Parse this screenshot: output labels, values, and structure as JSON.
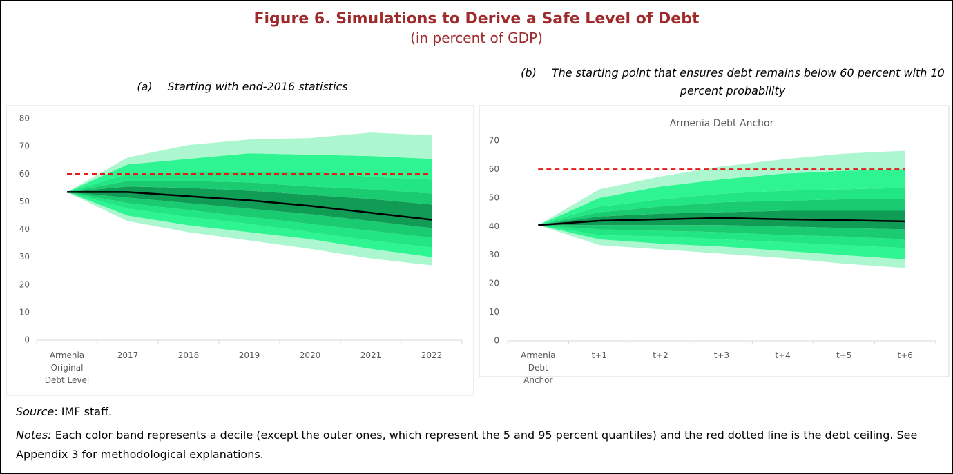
{
  "header": {
    "title": "Figure 6. Simulations to Derive a Safe Level of Debt",
    "subtitle": "(in percent of GDP)"
  },
  "chart_data": [
    {
      "type": "fan",
      "panel_label": "(a)",
      "panel_title": "Starting with end-2016 statistics",
      "categories": [
        "Armenia Original Debt Level",
        "2017",
        "2018",
        "2019",
        "2020",
        "2021",
        "2022"
      ],
      "quantiles": [
        [
          53.5,
          43,
          39,
          36,
          33,
          29.5,
          27
        ],
        [
          53.5,
          45,
          41.5,
          39,
          36.5,
          33,
          30
        ],
        [
          53.5,
          47.5,
          44.5,
          42,
          39,
          36,
          33.5
        ],
        [
          53.5,
          49.5,
          47,
          44.5,
          42,
          39.5,
          37
        ],
        [
          53.5,
          51.5,
          49.5,
          47.5,
          45.5,
          43,
          40.5
        ],
        [
          53.5,
          53.5,
          52,
          50.5,
          48.5,
          46,
          43.5
        ],
        [
          53.5,
          55.5,
          55,
          54,
          52.5,
          51,
          49
        ],
        [
          53.5,
          57.5,
          57.5,
          57,
          55.5,
          54.5,
          53
        ],
        [
          53.5,
          60,
          60.5,
          61,
          61,
          59,
          58
        ],
        [
          53.5,
          63.5,
          65.5,
          67.5,
          67,
          66.5,
          65.5
        ],
        [
          53.5,
          66,
          70.5,
          72.5,
          73,
          75,
          74
        ]
      ],
      "band_colors": [
        "#adf7d0",
        "#2ef591",
        "#22e583",
        "#1acb72",
        "#109c55",
        "#109c55",
        "#1acb72",
        "#22e583",
        "#2ef591",
        "#adf7d0"
      ],
      "median_color": "#000000",
      "reference_line": {
        "value": 60,
        "color": "#e31b1b"
      },
      "ylim": [
        0,
        80
      ],
      "yticks": [
        0,
        10,
        20,
        30,
        40,
        50,
        60,
        70,
        80
      ]
    },
    {
      "type": "fan",
      "panel_label": "(b)",
      "panel_title": "The starting point that ensures debt remains below 60 percent with 10 percent probability",
      "title": "Armenia Debt Anchor",
      "categories": [
        "Armenia Debt Anchor",
        "t+1",
        "t+2",
        "t+3",
        "t+4",
        "t+5",
        "t+6"
      ],
      "quantiles": [
        [
          40.5,
          33.5,
          32,
          30.5,
          29,
          27,
          25.5
        ],
        [
          40.5,
          35.5,
          34,
          33,
          31.5,
          30,
          28.5
        ],
        [
          40.5,
          37,
          36.5,
          35.5,
          34.5,
          33.5,
          32.5
        ],
        [
          40.5,
          39,
          38.5,
          38,
          37,
          36.5,
          35.5
        ],
        [
          40.5,
          40.5,
          40.5,
          40.5,
          40,
          39.5,
          39
        ],
        [
          40.5,
          42,
          42.5,
          43,
          42.5,
          42.2,
          41.8
        ],
        [
          40.5,
          43.5,
          44.5,
          45,
          45.5,
          45.5,
          45.5
        ],
        [
          40.5,
          45,
          47,
          48.5,
          49,
          49.5,
          49.5
        ],
        [
          40.5,
          47,
          49.5,
          51.5,
          52.5,
          53,
          53.5
        ],
        [
          40.5,
          50,
          54,
          56.5,
          58.5,
          59.5,
          60
        ],
        [
          40.5,
          53,
          57.5,
          61,
          63.5,
          65.5,
          66.5
        ]
      ],
      "band_colors": [
        "#adf7d0",
        "#2ef591",
        "#22e583",
        "#1acb72",
        "#109c55",
        "#109c55",
        "#1acb72",
        "#22e583",
        "#2ef591",
        "#adf7d0"
      ],
      "median_color": "#000000",
      "reference_line": {
        "value": 60,
        "color": "#e31b1b"
      },
      "ylim": [
        0,
        70
      ],
      "yticks": [
        0,
        10,
        20,
        30,
        40,
        50,
        60,
        70
      ]
    }
  ],
  "footer": {
    "source_label": "Source",
    "source_text": ": IMF staff.",
    "notes_label": "Notes:",
    "notes_text": " Each color band represents a decile (except the outer ones, which represent the 5 and 95 percent quantiles) and the red dotted line is the debt ceiling. See Appendix 3 for methodological explanations."
  }
}
